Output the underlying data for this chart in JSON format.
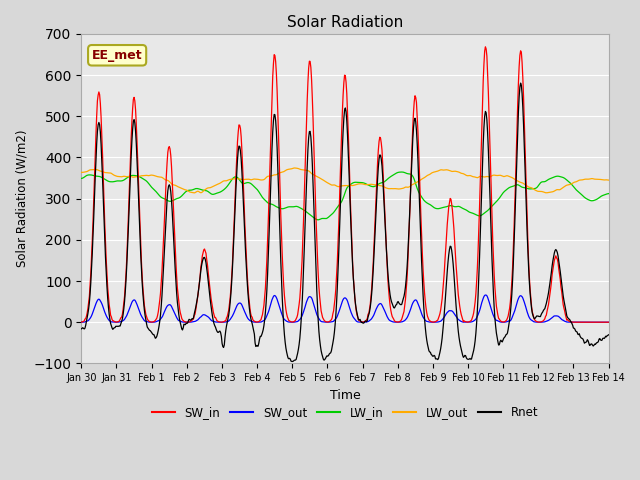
{
  "title": "Solar Radiation",
  "xlabel": "Time",
  "ylabel": "Solar Radiation (W/m2)",
  "ylim": [
    -100,
    700
  ],
  "legend_labels": [
    "SW_in",
    "SW_out",
    "LW_in",
    "LW_out",
    "Rnet"
  ],
  "legend_colors": [
    "#ff0000",
    "#0000ff",
    "#00cc00",
    "#ffaa00",
    "#000000"
  ],
  "annotation_text": "EE_met",
  "annotation_bg": "#ffffcc",
  "annotation_border": "#aaa820",
  "annotation_text_color": "#880000",
  "fig_bg_color": "#d8d8d8",
  "plot_bg_color": "#e8e8e8",
  "xtick_labels": [
    "Jan 30",
    "Jan 31",
    "Feb 1",
    "Feb 2",
    "Feb 3",
    "Feb 4",
    "Feb 5",
    "Feb 6",
    "Feb 7",
    "Feb 8",
    "Feb 9",
    "Feb 10",
    "Feb 11",
    "Feb 12",
    "Feb 13",
    "Feb 14"
  ],
  "n_days": 15,
  "seed": 12345,
  "day_peaks_sw_in": [
    560,
    545,
    430,
    175,
    480,
    650,
    635,
    600,
    450,
    550,
    300,
    670,
    660,
    160,
    0
  ]
}
